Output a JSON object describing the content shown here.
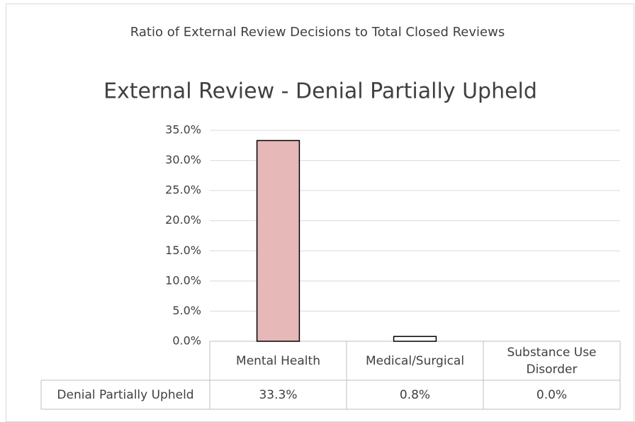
{
  "chart_data": {
    "type": "bar",
    "supertitle": "Ratio of External Review Decisions to Total Closed Reviews",
    "title": "External Review - Denial Partially Upheld",
    "categories": [
      "Mental Health",
      "Medical/Surgical",
      "Substance Use Disorder"
    ],
    "series": [
      {
        "name": "Denial Partially Upheld",
        "colors": [
          "#e6b8b7",
          "#ffffff",
          "#ffffff"
        ],
        "values": [
          33.3,
          0.8,
          0.0
        ],
        "value_labels": [
          "33.3%",
          "0.8%",
          "0.0%"
        ]
      }
    ],
    "ylim": [
      0,
      35
    ],
    "yticks": [
      {
        "value": 0,
        "label": "0.0%"
      },
      {
        "value": 5,
        "label": "5.0%"
      },
      {
        "value": 10,
        "label": "10.0%"
      },
      {
        "value": 15,
        "label": "15.0%"
      },
      {
        "value": 20,
        "label": "20.0%"
      },
      {
        "value": 25,
        "label": "25.0%"
      },
      {
        "value": 30,
        "label": "30.0%"
      },
      {
        "value": 35,
        "label": "35.0%"
      }
    ],
    "grid": true
  }
}
